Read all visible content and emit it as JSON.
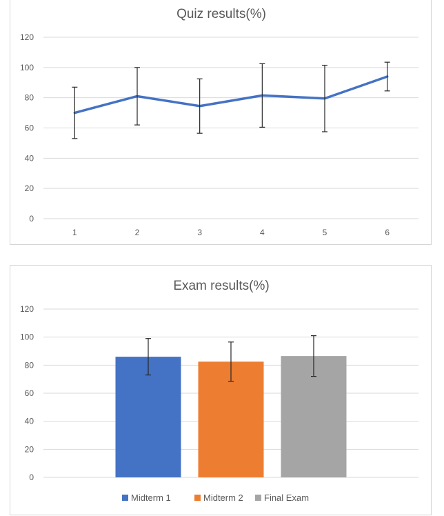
{
  "chart_data": [
    {
      "type": "line",
      "title": "Quiz results(%)",
      "xlabel": "",
      "ylabel": "",
      "categories": [
        "1",
        "2",
        "3",
        "4",
        "5",
        "6"
      ],
      "ylim": [
        0,
        120
      ],
      "yticks": [
        0,
        20,
        40,
        60,
        80,
        100,
        120
      ],
      "grid": true,
      "series": [
        {
          "values": [
            70,
            81,
            74.5,
            81.5,
            79.5,
            94
          ],
          "error": [
            17,
            19,
            18,
            21,
            22,
            9.5
          ],
          "color": "#4472c4"
        }
      ]
    },
    {
      "type": "bar",
      "title": "Exam results(%)",
      "xlabel": "",
      "ylabel": "",
      "ylim": [
        0,
        120
      ],
      "yticks": [
        0,
        20,
        40,
        60,
        80,
        100,
        120
      ],
      "grid": true,
      "legend_position": "bottom",
      "series": [
        {
          "name": "Midterm 1",
          "values": [
            86
          ],
          "error": [
            13
          ],
          "color": "#4472c4"
        },
        {
          "name": "Midterm 2",
          "values": [
            82.5
          ],
          "error": [
            14
          ],
          "color": "#ed7d31"
        },
        {
          "name": "Final Exam",
          "values": [
            86.5
          ],
          "error": [
            14.5
          ],
          "color": "#a5a5a5"
        }
      ]
    }
  ]
}
